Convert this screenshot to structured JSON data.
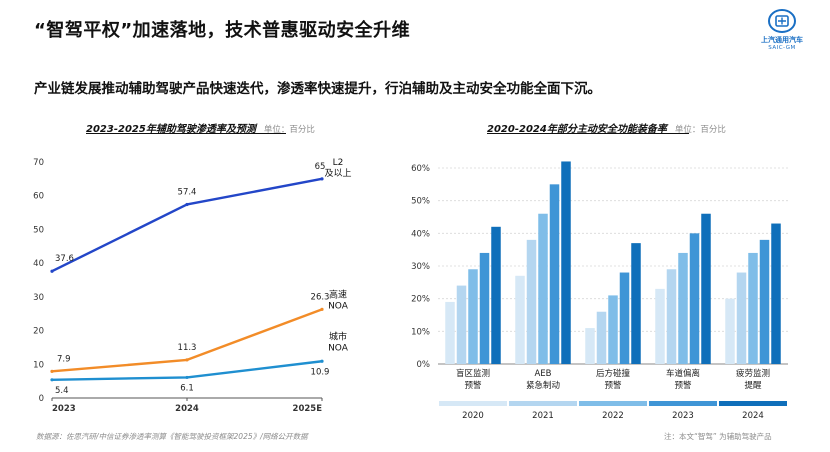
{
  "header": {
    "title": "“智驾平权”加速落地，技术普惠驱动安全升维",
    "subtitle": "产业链发展推动辅助驾驶产品快速迭代，渗透率快速提升，行泊辅助及主动安全功能全面下沉。"
  },
  "logo": {
    "cn": "上汽通用汽车",
    "en": "SAIC-GM"
  },
  "charts": {
    "left": {
      "title": "2023-2025年辅助驾驶渗透率及预测",
      "unit": "单位：百分比"
    },
    "right": {
      "title": "2020-2024年部分主动安全功能装备率",
      "unit": "单位：百分比"
    }
  },
  "footer": {
    "source": "数据源：佐思汽研/中信证券渗透率测算《智能驾驶投资框架2025》/网络公开数据",
    "note": "注：本文“智驾” 为辅助驾驶产品"
  },
  "chart_data": [
    {
      "type": "line",
      "title": "2023-2025年辅助驾驶渗透率及预测",
      "unit": "单位：百分比",
      "x": [
        "2023",
        "2024",
        "2025E"
      ],
      "ylim": [
        0,
        70
      ],
      "yticks": [
        0,
        10,
        20,
        30,
        40,
        50,
        60,
        70
      ],
      "series": [
        {
          "name": "L2 及以上",
          "label_lines": [
            "L2",
            "及以上"
          ],
          "values": [
            37.6,
            57.4,
            65
          ],
          "labels": [
            "37.6",
            "57.4",
            "65"
          ],
          "color": "#2346c8"
        },
        {
          "name": "高速 NOA",
          "label_lines": [
            "高速",
            "NOA"
          ],
          "values": [
            7.9,
            11.3,
            26.3
          ],
          "labels": [
            "7.9",
            "11.3",
            "26.3"
          ],
          "color": "#f28c28"
        },
        {
          "name": "城市 NOA",
          "label_lines": [
            "城市",
            "NOA"
          ],
          "values": [
            5.4,
            6.1,
            10.9
          ],
          "labels": [
            "5.4",
            "6.1",
            "10.9"
          ],
          "color": "#1f8fd0"
        }
      ]
    },
    {
      "type": "bar",
      "title": "2020-2024年部分主动安全功能装备率",
      "unit": "单位：百分比",
      "categories": [
        {
          "name": "盲区监测预警",
          "lines": [
            "盲区监测",
            "预警"
          ]
        },
        {
          "name": "AEB紧急制动",
          "lines": [
            "AEB",
            "紧急制动"
          ]
        },
        {
          "name": "后方碰撞预警",
          "lines": [
            "后方碰撞",
            "预警"
          ]
        },
        {
          "name": "车道偏离预警",
          "lines": [
            "车道偏离",
            "预警"
          ]
        },
        {
          "name": "疲劳监测提醒",
          "lines": [
            "疲劳监测",
            "提醒"
          ]
        }
      ],
      "ylim": [
        0,
        0.6
      ],
      "yticks": [
        0,
        0.1,
        0.2,
        0.3,
        0.4,
        0.5,
        0.6
      ],
      "ytick_labels": [
        "0%",
        "10%",
        "20%",
        "30%",
        "40%",
        "50%",
        "60%"
      ],
      "series": [
        {
          "name": "2020",
          "color": "#d6e8f6",
          "values": [
            0.19,
            0.27,
            0.11,
            0.23,
            0.2
          ]
        },
        {
          "name": "2021",
          "color": "#b4d6f0",
          "values": [
            0.24,
            0.38,
            0.16,
            0.29,
            0.28
          ]
        },
        {
          "name": "2022",
          "color": "#7fbde8",
          "values": [
            0.29,
            0.46,
            0.21,
            0.34,
            0.34
          ]
        },
        {
          "name": "2023",
          "color": "#3f95d6",
          "values": [
            0.34,
            0.55,
            0.28,
            0.4,
            0.38
          ]
        },
        {
          "name": "2024",
          "color": "#0f6fba",
          "values": [
            0.42,
            0.62,
            0.37,
            0.46,
            0.43
          ]
        }
      ]
    }
  ]
}
